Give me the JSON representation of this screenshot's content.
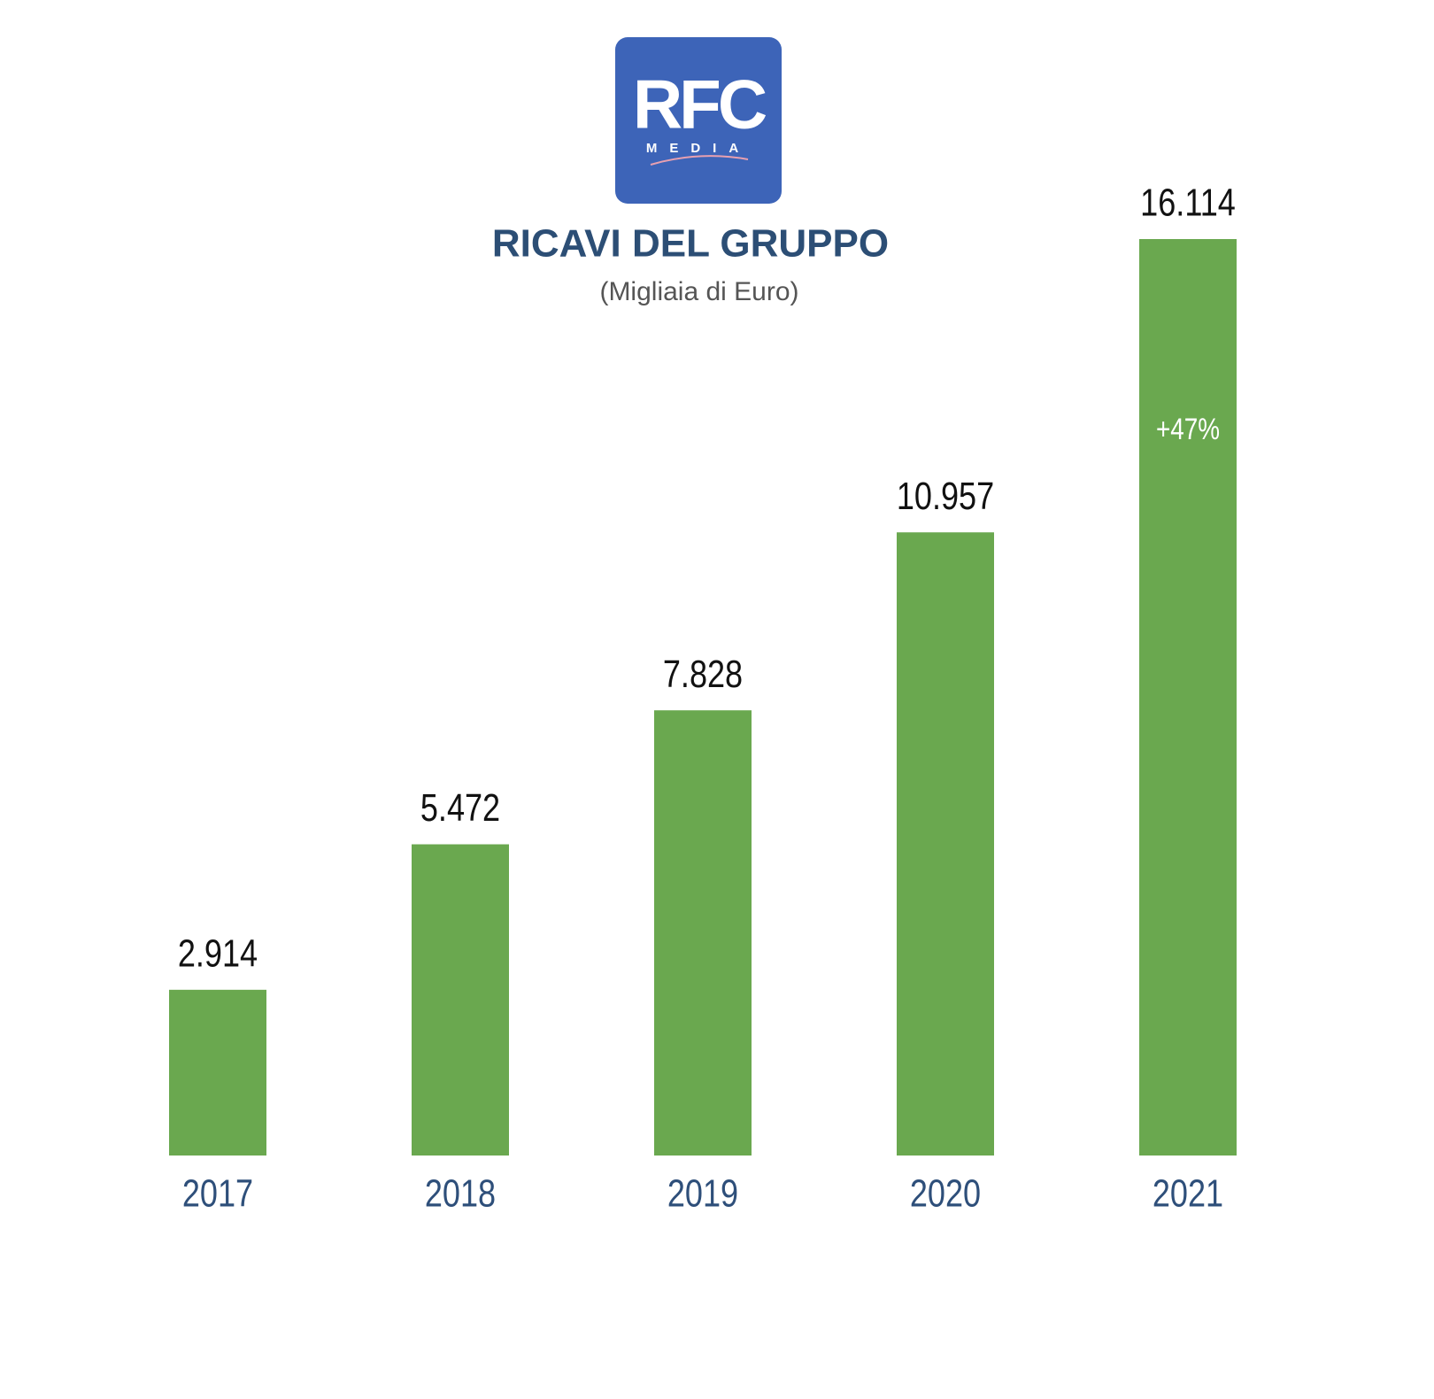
{
  "chart_data": {
    "type": "bar",
    "logo_text": "RFC",
    "logo_subtext": "MEDIA",
    "title": "RICAVI DEL GRUPPO",
    "subtitle": "(Migliaia di Euro)",
    "categories": [
      "2017",
      "2018",
      "2019",
      "2020",
      "2021"
    ],
    "values": [
      2914,
      5472,
      7828,
      10957,
      16114
    ],
    "value_labels": [
      "2.914",
      "5.472",
      "7.828",
      "10.957",
      "16.114"
    ],
    "annotation": "+47%",
    "color": "#6aa84f"
  }
}
